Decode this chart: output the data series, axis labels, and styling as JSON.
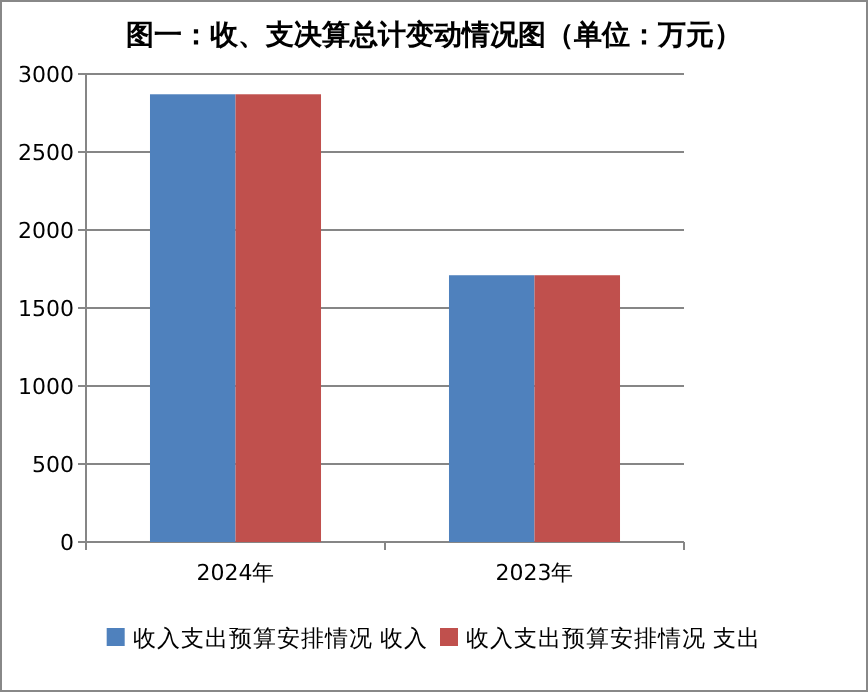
{
  "chart_data": {
    "type": "bar",
    "title": "图一：收、支决算总计变动情况图（单位：万元）",
    "categories": [
      "2024年",
      "2023年"
    ],
    "series": [
      {
        "name": "收入支出预算安排情况 收入",
        "color": "#4f81bd",
        "values": [
          2870,
          1710
        ]
      },
      {
        "name": "收入支出预算安排情况 支出",
        "color": "#c0504d",
        "values": [
          2870,
          1710
        ]
      }
    ],
    "ylim": [
      0,
      3000
    ],
    "yticks": [
      0,
      500,
      1000,
      1500,
      2000,
      2500,
      3000
    ],
    "grid": "y",
    "legend": "bottom"
  }
}
